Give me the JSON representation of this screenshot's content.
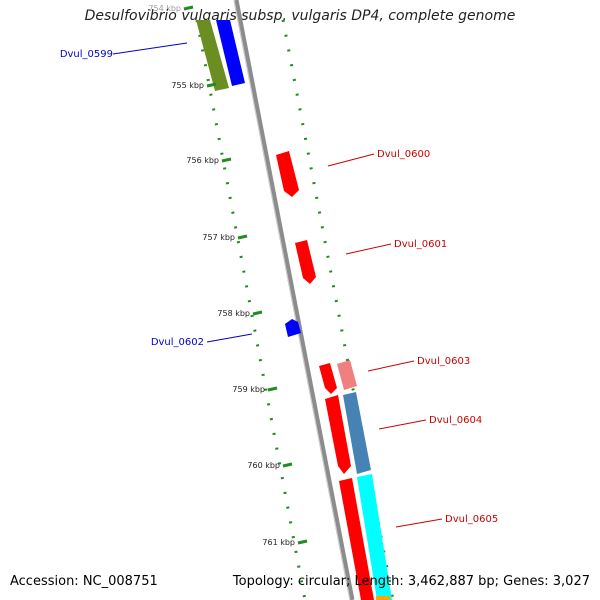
{
  "title": "Desulfovibrio vulgaris subsp. vulgaris DP4, complete genome",
  "footer": {
    "accession": "Accession: NC_008751",
    "stats": "Topology: circular; Length: 3,462,887 bp; Genes: 3,027"
  },
  "colors": {
    "backbone": "#8c8c8c",
    "forward_cds": "#ff0000",
    "reverse_cds": "#0000ff",
    "rna": "#f08080",
    "olive": "#6b8e23",
    "steel": "#4682b4",
    "cyan": "#00ffff",
    "gc_dots": "#228b22",
    "forward_label": "#cc0000",
    "reverse_label": "#0000cc"
  },
  "ticks": [
    {
      "label": "754 kbp"
    },
    {
      "label": "755 kbp"
    },
    {
      "label": "756 kbp"
    },
    {
      "label": "757 kbp"
    },
    {
      "label": "758 kbp"
    },
    {
      "label": "759 kbp"
    },
    {
      "label": "760 kbp"
    },
    {
      "label": "761 kbp"
    }
  ],
  "gene_labels": [
    {
      "name": "Dvul_0599",
      "strand": "reverse"
    },
    {
      "name": "Dvul_0600",
      "strand": "forward"
    },
    {
      "name": "Dvul_0601",
      "strand": "forward"
    },
    {
      "name": "Dvul_0602",
      "strand": "reverse"
    },
    {
      "name": "Dvul_0603",
      "strand": "forward"
    },
    {
      "name": "Dvul_0604",
      "strand": "forward"
    },
    {
      "name": "Dvul_0605",
      "strand": "forward"
    }
  ]
}
